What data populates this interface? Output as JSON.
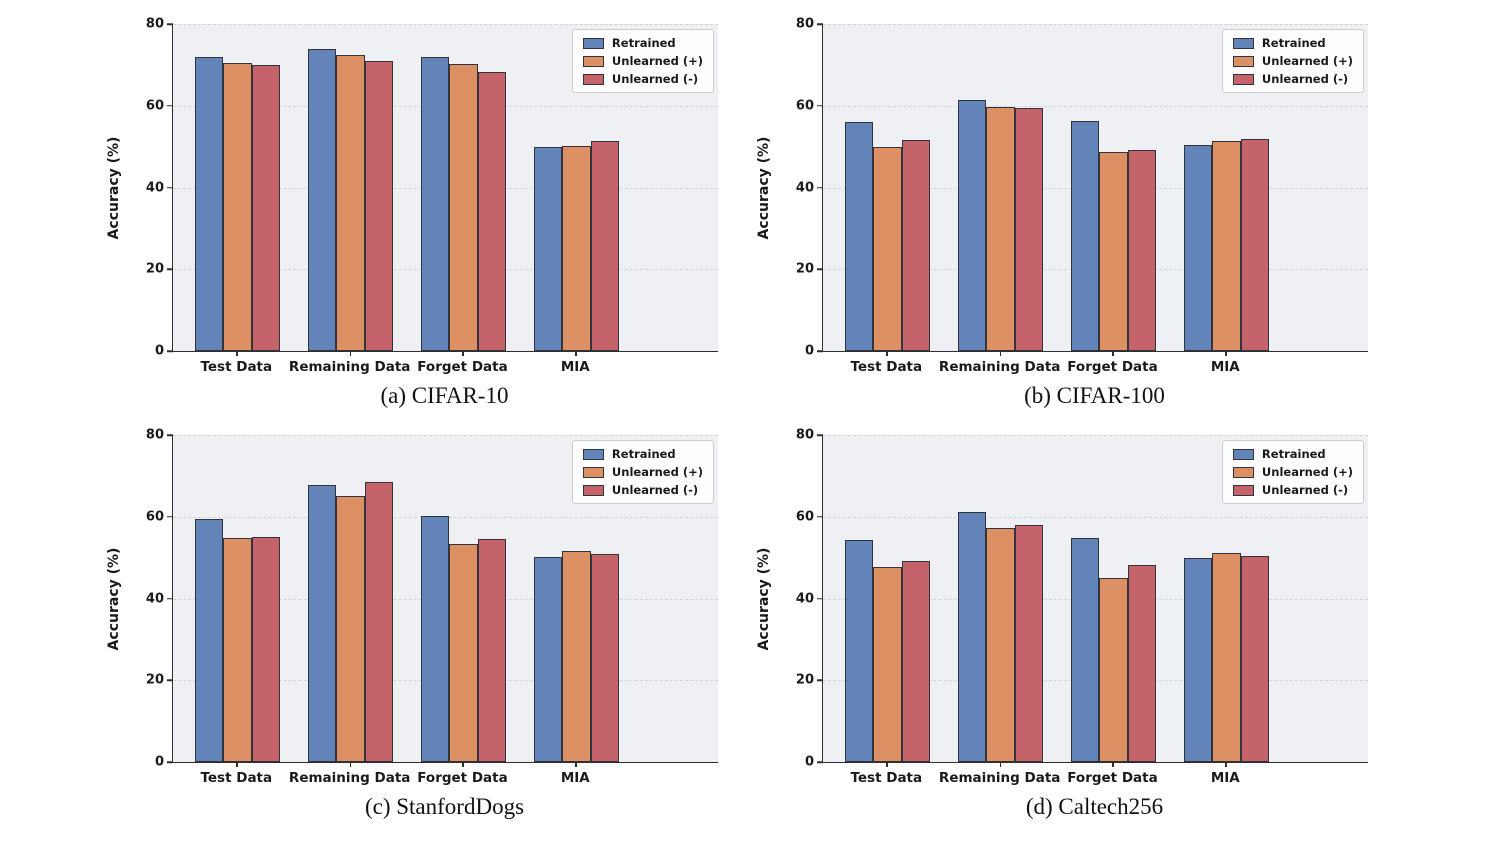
{
  "figure": {
    "ylabel": "Accuracy (%)",
    "categories": [
      "Test Data",
      "Remaining Data",
      "Forget Data",
      "MIA"
    ],
    "yticks": [
      0,
      20,
      40,
      60,
      80
    ],
    "ylim": [
      0,
      80
    ],
    "grid": true,
    "legend_position": "upper right",
    "legend_labels": [
      "Retrained",
      "Unlearned (+)",
      "Unlearned (-)"
    ],
    "colors": {
      "plot_background": "#eef0f4",
      "gridline": "#d2d3d9",
      "bar_edge": "#33333d",
      "series": [
        "#6284b8",
        "#de9065",
        "#c5636a"
      ]
    }
  },
  "chart_data": [
    {
      "type": "bar",
      "caption": "(a) CIFAR-10",
      "title": "CIFAR-10",
      "xlabel": "",
      "ylabel": "Accuracy (%)",
      "ylim": [
        0,
        80
      ],
      "categories": [
        "Test Data",
        "Remaining Data",
        "Forget Data",
        "MIA"
      ],
      "series": [
        {
          "name": "Retrained",
          "values": [
            72.0,
            74.0,
            72.0,
            50.0
          ]
        },
        {
          "name": "Unlearned (+)",
          "values": [
            70.4,
            72.4,
            70.3,
            50.2
          ]
        },
        {
          "name": "Unlearned (-)",
          "values": [
            69.9,
            71.0,
            68.2,
            51.4
          ]
        }
      ]
    },
    {
      "type": "bar",
      "caption": "(b) CIFAR-100",
      "title": "CIFAR-100",
      "xlabel": "",
      "ylabel": "Accuracy (%)",
      "ylim": [
        0,
        80
      ],
      "categories": [
        "Test Data",
        "Remaining Data",
        "Forget Data",
        "MIA"
      ],
      "series": [
        {
          "name": "Retrained",
          "values": [
            56.0,
            61.5,
            56.2,
            50.4
          ]
        },
        {
          "name": "Unlearned (+)",
          "values": [
            49.9,
            59.7,
            48.8,
            51.4
          ]
        },
        {
          "name": "Unlearned (-)",
          "values": [
            51.7,
            59.5,
            49.2,
            51.8
          ]
        }
      ]
    },
    {
      "type": "bar",
      "caption": "(c) StanfordDogs",
      "title": "StanfordDogs",
      "xlabel": "",
      "ylabel": "Accuracy (%)",
      "ylim": [
        0,
        80
      ],
      "categories": [
        "Test Data",
        "Remaining Data",
        "Forget Data",
        "MIA"
      ],
      "series": [
        {
          "name": "Retrained",
          "values": [
            59.4,
            67.8,
            60.2,
            50.1
          ]
        },
        {
          "name": "Unlearned (+)",
          "values": [
            54.7,
            65.1,
            53.4,
            51.7
          ]
        },
        {
          "name": "Unlearned (-)",
          "values": [
            55.0,
            68.4,
            54.6,
            50.8
          ]
        }
      ]
    },
    {
      "type": "bar",
      "caption": "(d) Caltech256",
      "title": "Caltech256",
      "xlabel": "",
      "ylabel": "Accuracy (%)",
      "ylim": [
        0,
        80
      ],
      "categories": [
        "Test Data",
        "Remaining Data",
        "Forget Data",
        "MIA"
      ],
      "series": [
        {
          "name": "Retrained",
          "values": [
            54.4,
            61.2,
            54.8,
            50.0
          ]
        },
        {
          "name": "Unlearned (+)",
          "values": [
            47.7,
            57.3,
            44.9,
            51.2
          ]
        },
        {
          "name": "Unlearned (-)",
          "values": [
            49.3,
            57.9,
            48.2,
            50.4
          ]
        }
      ]
    }
  ]
}
